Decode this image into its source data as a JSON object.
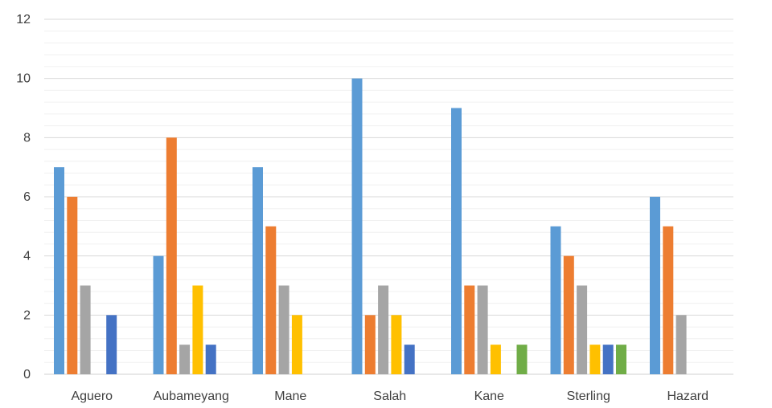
{
  "chart_data": {
    "type": "bar",
    "title": "",
    "xlabel": "",
    "ylabel": "",
    "categories": [
      "Aguero",
      "Aubameyang",
      "Mane",
      "Salah",
      "Kane",
      "Sterling",
      "Hazard"
    ],
    "ylim": [
      0,
      12
    ],
    "yticks": [
      0,
      2,
      4,
      6,
      8,
      10,
      12
    ],
    "grid": true,
    "legend": "none",
    "series": [
      {
        "color": "#5B9BD5",
        "values": [
          7,
          4,
          7,
          10,
          9,
          5,
          6
        ]
      },
      {
        "color": "#ED7D31",
        "values": [
          6,
          8,
          5,
          2,
          3,
          4,
          5
        ]
      },
      {
        "color": "#A5A5A5",
        "values": [
          3,
          1,
          3,
          3,
          3,
          3,
          2
        ]
      },
      {
        "color": "#FFC000",
        "values": [
          0,
          3,
          2,
          2,
          1,
          1,
          0
        ]
      },
      {
        "color": "#4472C4",
        "values": [
          2,
          1,
          0,
          1,
          0,
          1,
          0
        ]
      },
      {
        "color": "#70AD47",
        "values": [
          0,
          0,
          0,
          0,
          1,
          1,
          0
        ]
      }
    ]
  }
}
